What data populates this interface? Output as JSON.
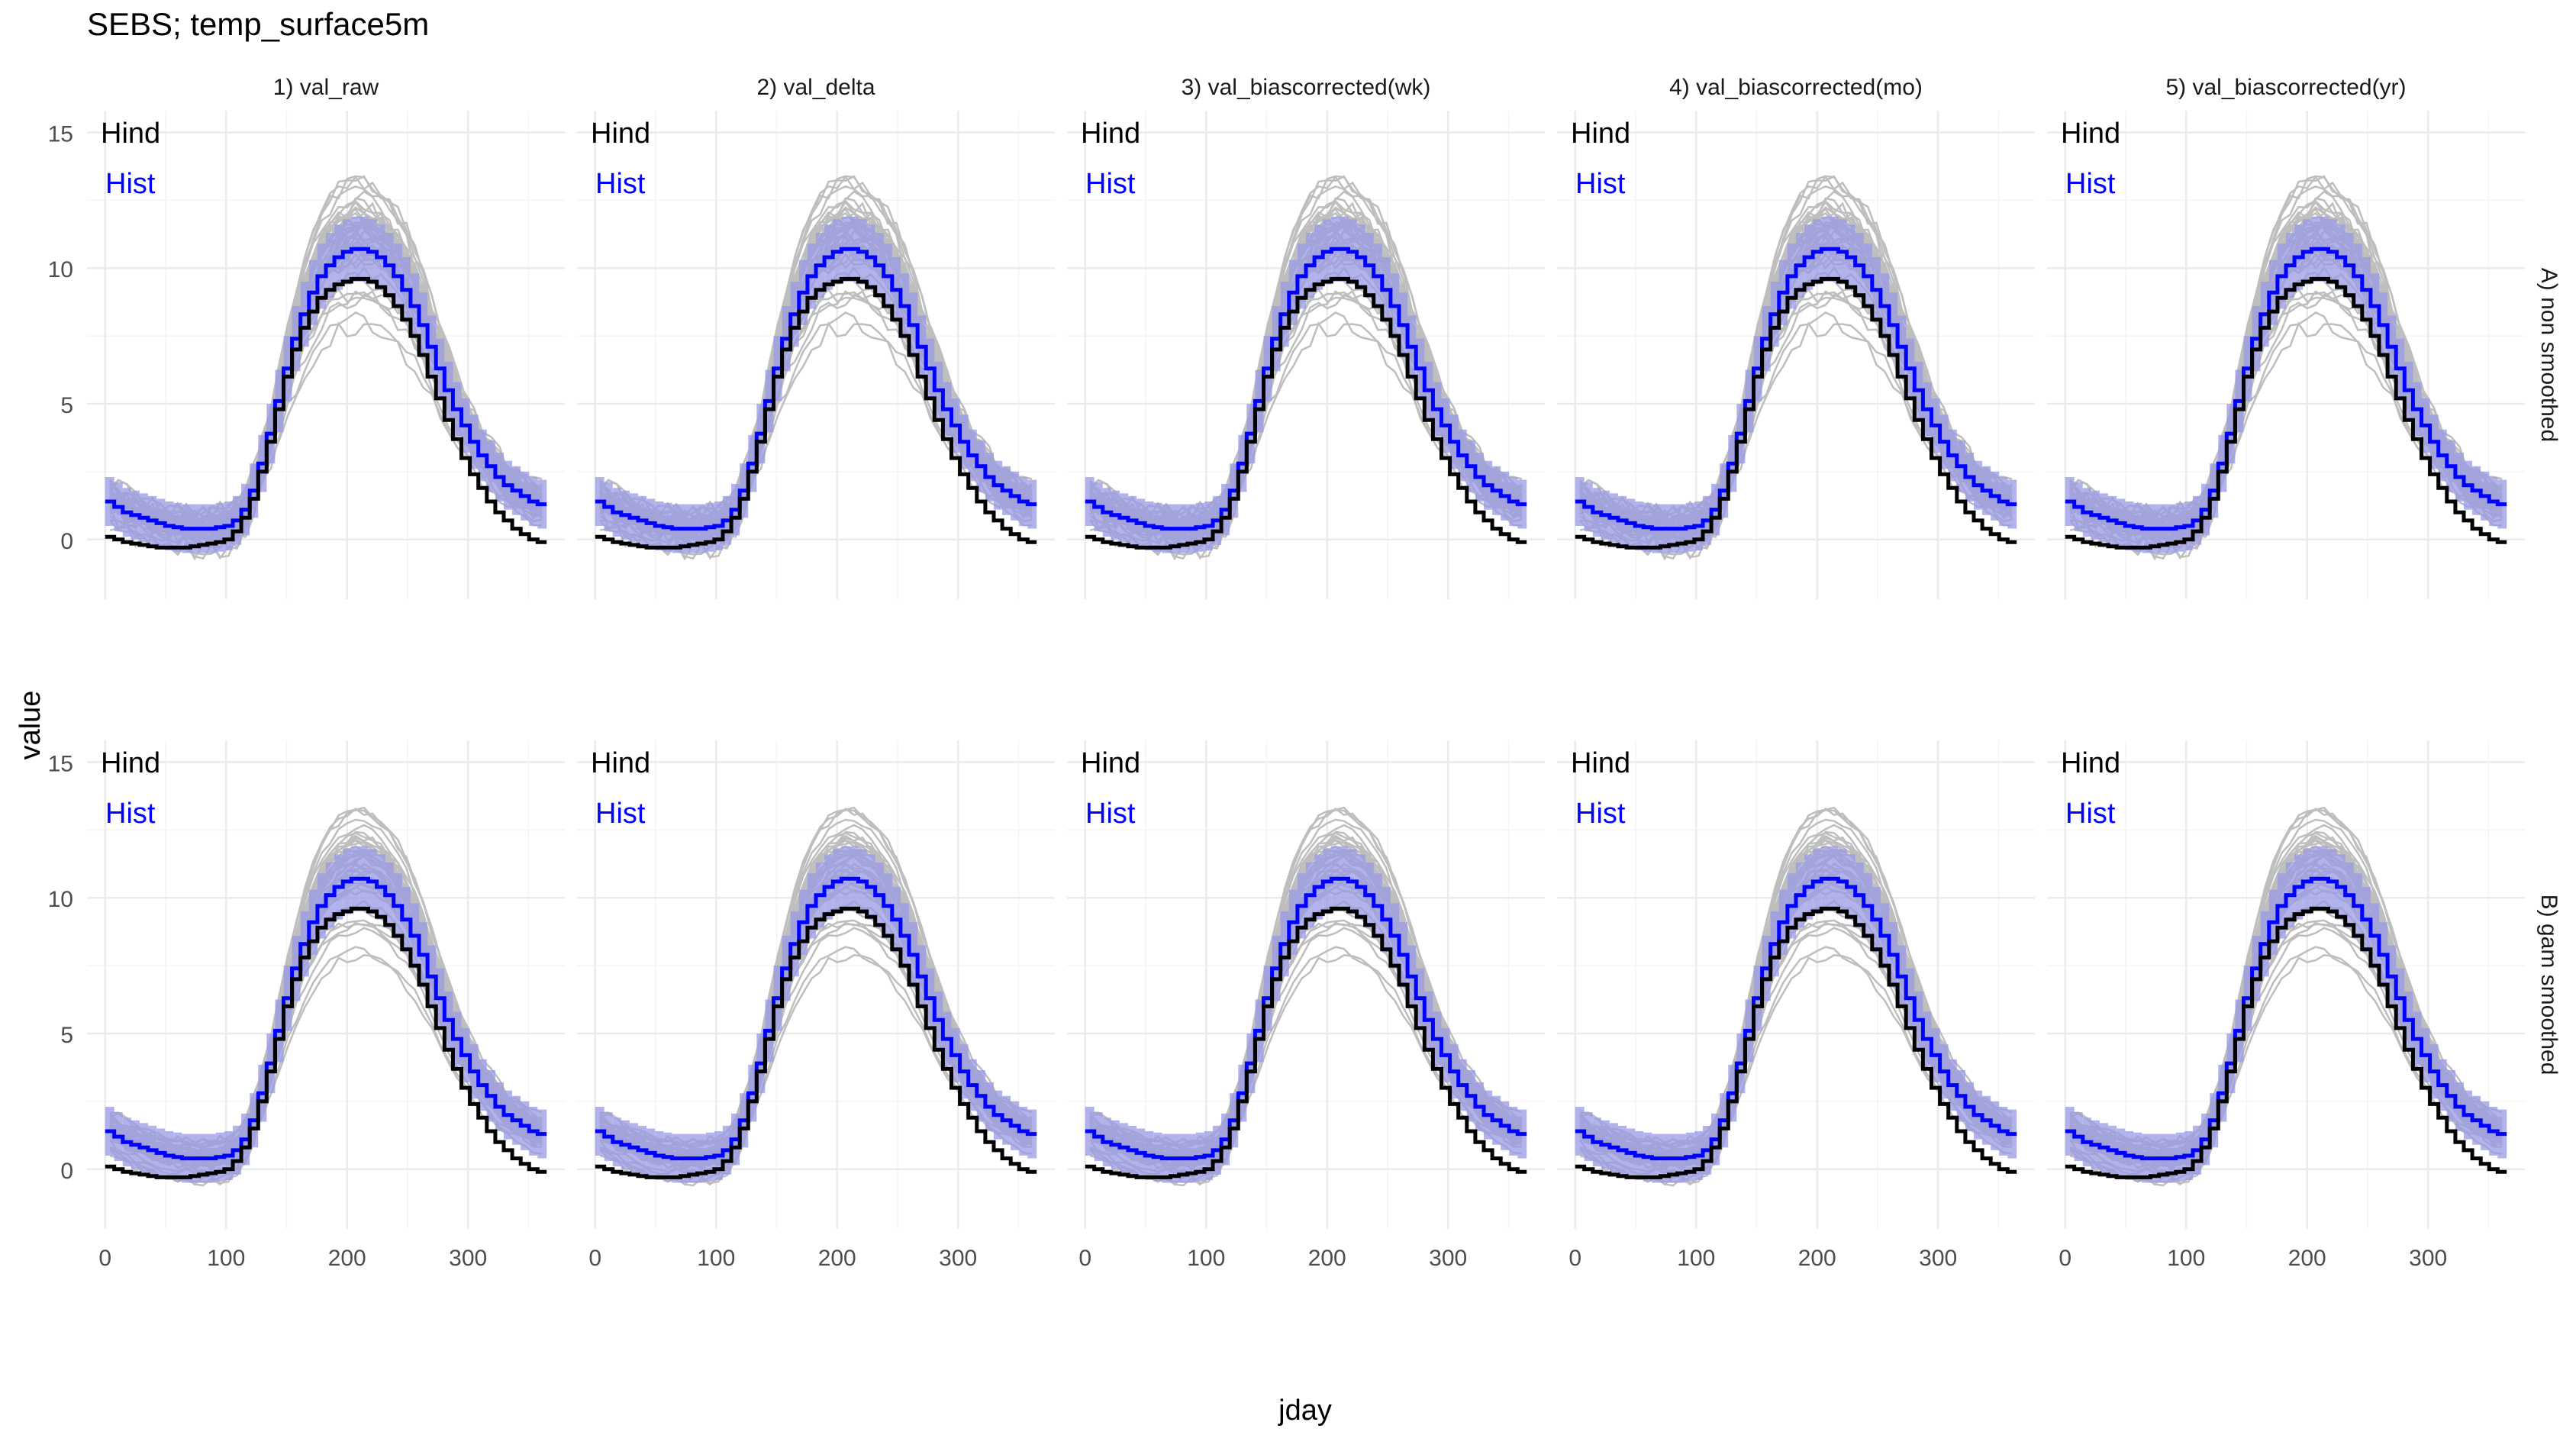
{
  "chart_data": {
    "type": "line",
    "title": "SEBS; temp_surface5m",
    "xlabel": "jday",
    "ylabel": "value",
    "xlim": [
      -15,
      380
    ],
    "ylim": [
      -2.2,
      15.8
    ],
    "x_ticks": [
      0,
      100,
      200,
      300
    ],
    "y_ticks": [
      0,
      5,
      10,
      15
    ],
    "grid": true,
    "columns": [
      "1) val_raw",
      "2) val_delta",
      "3) val_biascorrected(wk)",
      "4) val_biascorrected(mo)",
      "5) val_biascorrected(yr)"
    ],
    "rows": [
      "A) non smoothed",
      "B) gam smoothed"
    ],
    "annotations": [
      "Hind",
      "Hist"
    ],
    "colors": {
      "hind": "#000000",
      "hist": "#0000ff",
      "band": "#9999e6",
      "ensemble": "#bebebe",
      "grid": "#ebebeb"
    },
    "x": [
      4,
      11,
      18,
      25,
      32,
      39,
      46,
      53,
      60,
      67,
      74,
      81,
      88,
      95,
      102,
      109,
      116,
      123,
      130,
      137,
      144,
      151,
      158,
      165,
      172,
      179,
      186,
      193,
      200,
      207,
      214,
      221,
      228,
      235,
      242,
      249,
      256,
      263,
      270,
      277,
      284,
      291,
      298,
      305,
      312,
      319,
      326,
      333,
      340,
      347,
      354,
      361
    ],
    "series": [
      {
        "name": "Hind",
        "values": [
          0.1,
          0.0,
          -0.1,
          -0.15,
          -0.2,
          -0.25,
          -0.3,
          -0.3,
          -0.3,
          -0.3,
          -0.25,
          -0.2,
          -0.15,
          -0.1,
          0.0,
          0.3,
          0.8,
          1.5,
          2.5,
          3.6,
          4.8,
          6.0,
          7.0,
          7.8,
          8.4,
          8.9,
          9.2,
          9.4,
          9.5,
          9.6,
          9.6,
          9.5,
          9.3,
          9.0,
          8.6,
          8.1,
          7.5,
          6.8,
          6.0,
          5.2,
          4.4,
          3.7,
          3.0,
          2.4,
          1.9,
          1.4,
          1.0,
          0.7,
          0.4,
          0.2,
          0.0,
          -0.1
        ]
      },
      {
        "name": "Hist",
        "values": [
          1.4,
          1.2,
          1.0,
          0.9,
          0.8,
          0.7,
          0.6,
          0.5,
          0.45,
          0.4,
          0.4,
          0.4,
          0.4,
          0.45,
          0.5,
          0.7,
          1.1,
          1.8,
          2.8,
          3.9,
          5.1,
          6.3,
          7.4,
          8.3,
          9.1,
          9.7,
          10.1,
          10.4,
          10.6,
          10.7,
          10.7,
          10.6,
          10.4,
          10.1,
          9.7,
          9.2,
          8.6,
          7.9,
          7.1,
          6.3,
          5.5,
          4.8,
          4.2,
          3.6,
          3.1,
          2.7,
          2.3,
          2.0,
          1.8,
          1.6,
          1.4,
          1.3
        ]
      }
    ],
    "band_halfwidth": [
      0.9,
      0.9,
      0.9,
      0.9,
      0.9,
      0.9,
      0.9,
      0.9,
      0.9,
      0.9,
      0.9,
      0.9,
      0.9,
      0.9,
      0.9,
      0.9,
      0.95,
      1.0,
      1.05,
      1.1,
      1.15,
      1.2,
      1.2,
      1.2,
      1.2,
      1.2,
      1.2,
      1.2,
      1.2,
      1.2,
      1.2,
      1.2,
      1.2,
      1.2,
      1.2,
      1.2,
      1.2,
      1.2,
      1.15,
      1.1,
      1.05,
      1.0,
      1.0,
      1.0,
      0.95,
      0.95,
      0.9,
      0.9,
      0.9,
      0.9,
      0.9,
      0.9
    ],
    "ensemble_count": 45
  }
}
